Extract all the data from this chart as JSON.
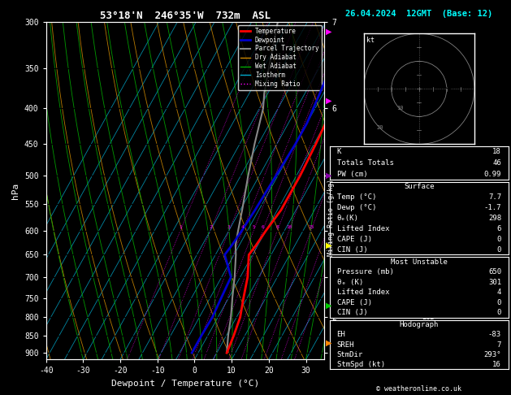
{
  "title_left": "53°18'N  246°35'W  732m  ASL",
  "title_right": "26.04.2024  12GMT  (Base: 12)",
  "xlabel": "Dewpoint / Temperature (°C)",
  "ylabel_left": "hPa",
  "pressure_ticks": [
    300,
    350,
    400,
    450,
    500,
    550,
    600,
    650,
    700,
    750,
    800,
    850,
    900
  ],
  "temp_ticks": [
    -40,
    -30,
    -20,
    -10,
    0,
    10,
    20,
    30
  ],
  "km_ticks": [
    1,
    2,
    3,
    4,
    5,
    6,
    7
  ],
  "km_pressures": [
    900,
    800,
    700,
    600,
    500,
    400,
    300
  ],
  "temp_profile_p": [
    900,
    850,
    800,
    750,
    700,
    650,
    630,
    600,
    560,
    500,
    450,
    420,
    380,
    350,
    300
  ],
  "temp_profile_t": [
    7.7,
    7.0,
    6.0,
    4.0,
    2.0,
    -1.0,
    -0.5,
    0.0,
    1.0,
    1.0,
    0.5,
    0.0,
    -1.5,
    -3.0,
    -5.0
  ],
  "dew_profile_p": [
    900,
    850,
    800,
    750,
    700,
    650,
    630,
    600,
    560,
    500,
    450,
    420,
    380,
    350,
    300
  ],
  "dew_profile_t": [
    -1.7,
    -1.7,
    -1.5,
    -2.0,
    -2.5,
    -7.5,
    -7.0,
    -6.5,
    -6.0,
    -5.5,
    -5.0,
    -5.0,
    -6.0,
    -7.0,
    -9.0
  ],
  "parcel_profile_p": [
    900,
    850,
    800,
    750,
    700,
    650,
    630,
    600,
    560,
    500,
    450,
    400,
    380,
    350,
    300
  ],
  "parcel_profile_t": [
    7.7,
    5.5,
    3.5,
    1.0,
    -1.5,
    -4.5,
    -6.0,
    -7.5,
    -9.5,
    -13.0,
    -16.0,
    -19.0,
    -21.0,
    -23.5,
    -28.0
  ],
  "color_temp": "#ff0000",
  "color_dew": "#0000cc",
  "color_parcel": "#888888",
  "color_dry_adiabat": "#cc8800",
  "color_wet_adiabat": "#00aa00",
  "color_isotherm": "#00aacc",
  "color_mixing": "#ff00ff",
  "color_hlines": "#000000",
  "background": "#000000",
  "text_color": "#ffffff",
  "lcl_pressure": 800,
  "hodograph_wind_dirs": [
    250,
    260,
    270,
    280,
    285,
    295
  ],
  "hodograph_wind_speeds": [
    4,
    7,
    11,
    14,
    16,
    16
  ],
  "k_index": 18,
  "totals_totals": 46,
  "pw_cm": "0.99",
  "surf_temp": "7.7",
  "surf_dewp": "-1.7",
  "surf_theta_e": "298",
  "surf_li": "6",
  "surf_cape": "0",
  "surf_cin": "0",
  "mu_pressure": "650",
  "mu_theta_e": "301",
  "mu_li": "4",
  "mu_cape": "0",
  "mu_cin": "0",
  "hodo_eh": "-83",
  "hodo_sreh": "7",
  "hodo_stmdir": "293°",
  "hodo_stmspd": "16",
  "p_min": 300,
  "p_max": 920,
  "t_min": -40,
  "t_max": 35,
  "skew": 45
}
